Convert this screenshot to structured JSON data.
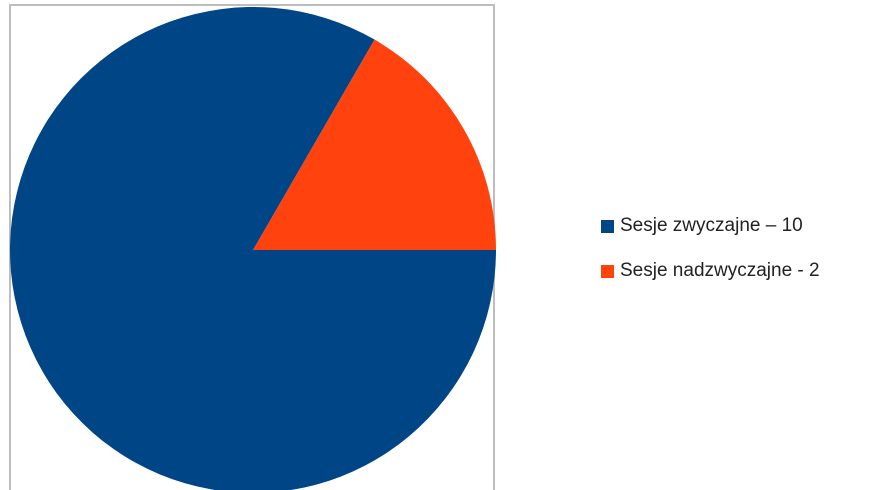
{
  "chart_data": {
    "type": "pie",
    "slices": [
      {
        "label": "Sesje zwyczajne – 10",
        "value": 10,
        "color": "#004586"
      },
      {
        "label": "Sesje nadzwyczajne - 2",
        "value": 2,
        "color": "#FF420E"
      }
    ],
    "legend_position": "right"
  }
}
